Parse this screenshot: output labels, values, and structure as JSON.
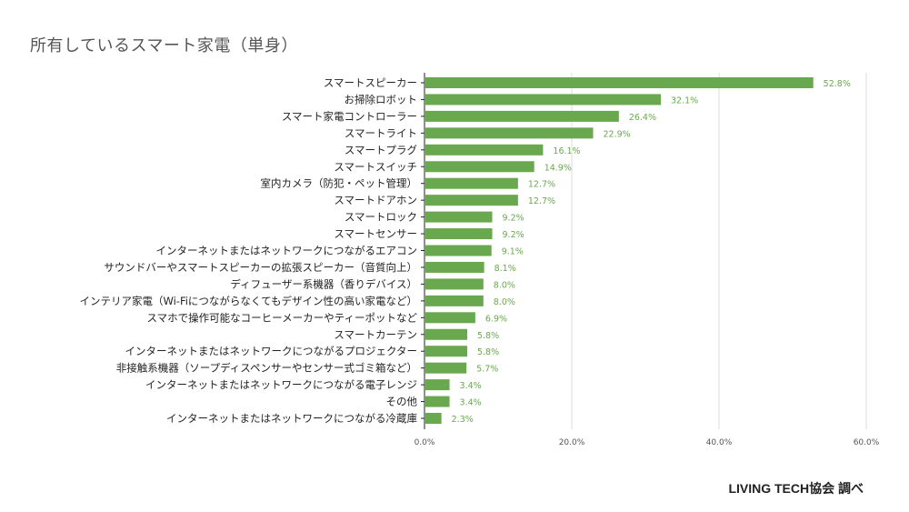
{
  "colors": {
    "bar": "#6aa84f",
    "value_label": "#6aa84f",
    "grid": "#dddddd",
    "axis": "#222222"
  },
  "source": "LIVING TECH協会 調べ",
  "chart_data": {
    "type": "bar",
    "orientation": "horizontal",
    "title": "所有しているスマート家電（単身）",
    "categories": [
      "スマートスピーカー",
      "お掃除ロボット",
      "スマート家電コントローラー",
      "スマートライト",
      "スマートプラグ",
      "スマートスイッチ",
      "室内カメラ（防犯・ペット管理）",
      "スマートドアホン",
      "スマートロック",
      "スマートセンサー",
      "インターネットまたはネットワークにつながるエアコン",
      "サウンドバーやスマートスピーカーの拡張スピーカー（音質向上）",
      "ディフューザー系機器（香りデバイス）",
      "インテリア家電（Wi-Fiにつながらなくてもデザイン性の高い家電など）",
      "スマホで操作可能なコーヒーメーカーやティーポットなど",
      "スマートカーテン",
      "インターネットまたはネットワークにつながるプロジェクター",
      "非接触系機器（ソープディスペンサーやセンサー式ゴミ箱など）",
      "インターネットまたはネットワークにつながる電子レンジ",
      "その他",
      "インターネットまたはネットワークにつながる冷蔵庫"
    ],
    "values": [
      52.8,
      32.1,
      26.4,
      22.9,
      16.1,
      14.9,
      12.7,
      12.7,
      9.2,
      9.2,
      9.1,
      8.1,
      8.0,
      8.0,
      6.9,
      5.8,
      5.8,
      5.7,
      3.4,
      3.4,
      2.3
    ],
    "value_labels": [
      "52.8%",
      "32.1%",
      "26.4%",
      "22.9%",
      "16.1%",
      "14.9%",
      "12.7%",
      "12.7%",
      "9.2%",
      "9.2%",
      "9.1%",
      "8.1%",
      "8.0%",
      "8.0%",
      "6.9%",
      "5.8%",
      "5.8%",
      "5.7%",
      "3.4%",
      "3.4%",
      "2.3%"
    ],
    "xlim": [
      0,
      60
    ],
    "xticks": [
      0,
      20,
      40,
      60
    ],
    "xtick_labels": [
      "0.0%",
      "20.0%",
      "40.0%",
      "60.0%"
    ],
    "grid": true,
    "legend": "none"
  }
}
